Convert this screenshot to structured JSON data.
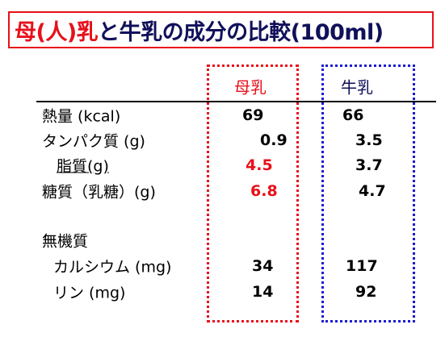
{
  "title": {
    "part1": "母(人)乳",
    "part2": "と牛乳の成分の比較(100ml)"
  },
  "table": {
    "header": [
      "母乳",
      "牛乳"
    ],
    "rows": [
      [
        "熱量 (kcal)",
        "69",
        "66"
      ],
      [
        "タンパク質 (g)",
        "0.9",
        "3.5"
      ],
      [
        "脂質(g)",
        "4.5",
        "3.7"
      ],
      [
        "糖質（乳糖）(g)",
        "6.8",
        "4.7"
      ]
    ],
    "section": "無機質",
    "section_rows": [
      [
        "カルシウム (mg)",
        "34",
        "117"
      ],
      [
        "リン (mg)",
        "14",
        "92"
      ]
    ]
  }
}
